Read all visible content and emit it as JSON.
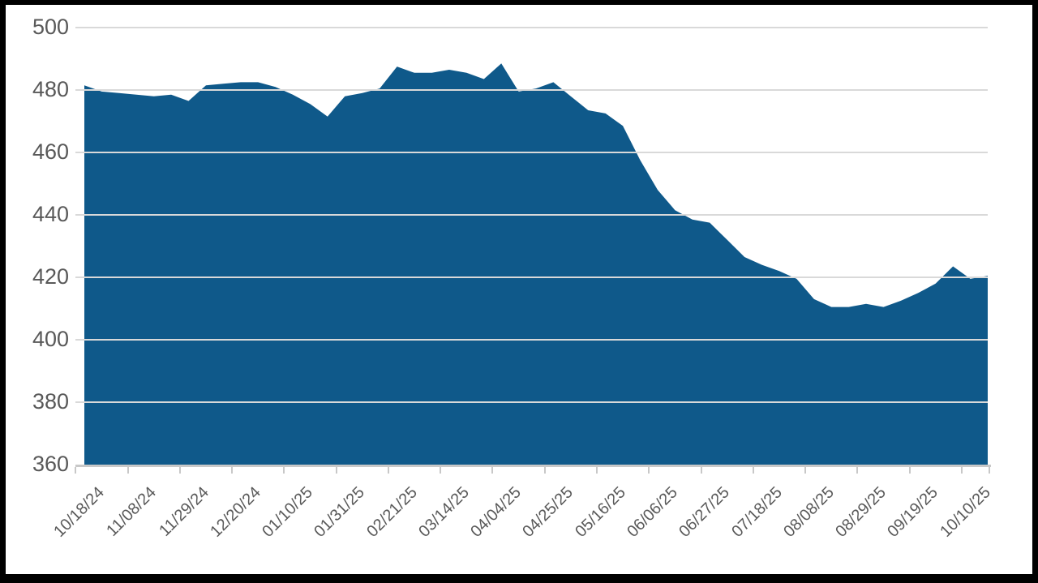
{
  "frame": {
    "border_color": "#000000",
    "panel_background": "#ffffff"
  },
  "chart_data": {
    "type": "area",
    "title": "",
    "legend": null,
    "grid": "horizontal",
    "fill_color": "#0f598a",
    "gridline_color": "#d9d9d9",
    "axis_line_color": "#c8c8c8",
    "axis_text_color": "#595959",
    "ylim": [
      360,
      500
    ],
    "yticks": [
      500,
      480,
      460,
      440,
      420,
      400,
      380,
      360
    ],
    "x_tick_labels": [
      "10/18/24",
      "11/08/24",
      "11/29/24",
      "12/20/24",
      "01/10/25",
      "01/31/25",
      "02/21/25",
      "03/14/25",
      "04/04/25",
      "04/25/25",
      "05/16/25",
      "06/06/25",
      "06/27/25",
      "07/18/25",
      "08/08/25",
      "08/29/25",
      "09/19/25",
      "10/10/25"
    ],
    "label_every_n_points": 3,
    "x": [
      "10/18/24",
      "10/25/24",
      "11/01/24",
      "11/08/24",
      "11/15/24",
      "11/22/24",
      "11/29/24",
      "12/06/24",
      "12/13/24",
      "12/20/24",
      "12/27/24",
      "01/03/25",
      "01/10/25",
      "01/17/25",
      "01/24/25",
      "01/31/25",
      "02/07/25",
      "02/14/25",
      "02/21/25",
      "02/28/25",
      "03/07/25",
      "03/14/25",
      "03/21/25",
      "03/28/25",
      "04/04/25",
      "04/11/25",
      "04/18/25",
      "04/25/25",
      "05/02/25",
      "05/09/25",
      "05/16/25",
      "05/23/25",
      "05/30/25",
      "06/06/25",
      "06/13/25",
      "06/20/25",
      "06/27/25",
      "07/04/25",
      "07/11/25",
      "07/18/25",
      "07/25/25",
      "08/01/25",
      "08/08/25",
      "08/15/25",
      "08/22/25",
      "08/29/25",
      "09/05/25",
      "09/12/25",
      "09/19/25",
      "09/26/25",
      "10/03/25",
      "10/10/25",
      "10/17/25"
    ],
    "values": [
      481.5,
      479.5,
      479,
      478.5,
      478,
      478.5,
      476.5,
      481.5,
      482,
      482.5,
      482.5,
      481,
      478.5,
      475.5,
      471.5,
      478,
      479,
      480.5,
      487.5,
      485.5,
      485.5,
      486.5,
      485.5,
      483.5,
      488.5,
      479.5,
      480.5,
      482.5,
      478,
      473.5,
      472.5,
      468.5,
      457.5,
      448,
      441.5,
      438.5,
      437.5,
      432,
      426.5,
      424,
      422,
      419.5,
      413,
      410.5,
      410.5,
      411.5,
      410.5,
      412.5,
      415,
      418,
      423.5,
      419.5,
      420.5
    ]
  }
}
